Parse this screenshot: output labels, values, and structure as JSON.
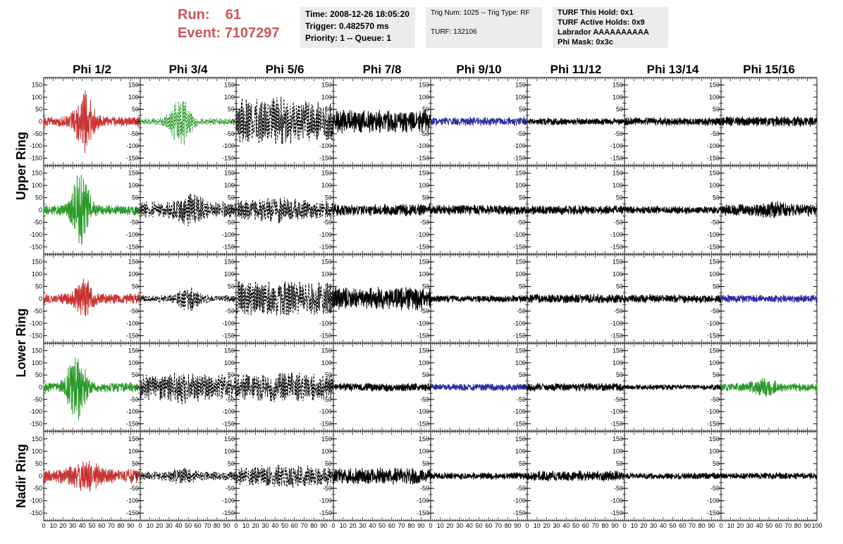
{
  "header": {
    "run_label": "Run:",
    "run_value": "61",
    "event_label": "Event:",
    "event_value": "7107297",
    "info_time": "Time: 2008-12-26 18:05:20",
    "info_trigger": "Trigger: 0.482570 ms",
    "info_priority": "Priority: 1 -- Queue: 1",
    "info_trig_num": "Trig Num: 1025 -- Trig Type: RF",
    "info_turf": "TURF: 132106",
    "info_this_hold": "TURF This Hold: 0x1",
    "info_active_holds": "TURF Active Holds: 0x9",
    "info_labrador": "Labrador AAAAAAAAAA",
    "info_phi_mask": "Phi Mask: 0x3c"
  },
  "colors": {
    "red": "#c83232",
    "green": "#2a9a2a",
    "blue": "#2a2aa0",
    "black": "#000000"
  },
  "chart_data": {
    "type": "line",
    "columns": [
      "Phi 1/2",
      "Phi 3/4",
      "Phi 5/6",
      "Phi 7/8",
      "Phi 9/10",
      "Phi 11/12",
      "Phi 13/14",
      "Phi 15/16"
    ],
    "rows": [
      "Upper Ring",
      "Upper Ring",
      "Lower Ring",
      "Lower Ring",
      "Nadir Ring"
    ],
    "ring_labels": [
      "Upper Ring",
      "Lower Ring",
      "Nadir Ring"
    ],
    "xlim": [
      0,
      100
    ],
    "ylim": [
      -175,
      175
    ],
    "x_ticks": [
      0,
      10,
      20,
      30,
      40,
      50,
      60,
      70,
      80,
      90,
      100
    ],
    "x_tick_labels": [
      "0",
      "10",
      "20",
      "30",
      "40",
      "50",
      "60",
      "70",
      "80",
      "90",
      "100"
    ],
    "y_ticks": [
      -150,
      -100,
      -50,
      0,
      50,
      100,
      150
    ],
    "y_tick_labels": [
      "-150",
      "-100",
      "-50",
      "0",
      "50",
      "100",
      "150"
    ],
    "panels": [
      [
        {
          "color": "red",
          "style": "solid",
          "amp": 22,
          "peak": 110,
          "peak_x": 42,
          "width": 10
        },
        {
          "color": "green",
          "style": "dashed",
          "amp": 15,
          "peak": 100,
          "peak_x": 42,
          "width": 11
        },
        {
          "color": "black",
          "style": "dashed",
          "amp": 90,
          "peak": 20,
          "peak_x": 30,
          "width": 25
        },
        {
          "color": "black",
          "style": "solid",
          "amp": 50,
          "peak": 0,
          "peak_x": 50,
          "width": 30
        },
        {
          "color": "blue",
          "style": "solid",
          "amp": 18,
          "peak": 0,
          "peak_x": 50,
          "width": 30
        },
        {
          "color": "black",
          "style": "solid",
          "amp": 15,
          "peak": 0,
          "peak_x": 50,
          "width": 30
        },
        {
          "color": "black",
          "style": "solid",
          "amp": 18,
          "peak": 0,
          "peak_x": 50,
          "width": 30
        },
        {
          "color": "black",
          "style": "solid",
          "amp": 22,
          "peak": 0,
          "peak_x": 50,
          "width": 30
        }
      ],
      [
        {
          "color": "green",
          "style": "solid",
          "amp": 22,
          "peak": 160,
          "peak_x": 38,
          "width": 9
        },
        {
          "color": "black",
          "style": "dashed",
          "amp": 35,
          "peak": 45,
          "peak_x": 52,
          "width": 12
        },
        {
          "color": "black",
          "style": "dashed",
          "amp": 40,
          "peak": 15,
          "peak_x": 40,
          "width": 25
        },
        {
          "color": "black",
          "style": "solid",
          "amp": 25,
          "peak": 0,
          "peak_x": 50,
          "width": 30
        },
        {
          "color": "black",
          "style": "solid",
          "amp": 22,
          "peak": 0,
          "peak_x": 50,
          "width": 30
        },
        {
          "color": "black",
          "style": "solid",
          "amp": 20,
          "peak": 0,
          "peak_x": 50,
          "width": 30
        },
        {
          "color": "black",
          "style": "solid",
          "amp": 16,
          "peak": 0,
          "peak_x": 50,
          "width": 30
        },
        {
          "color": "black",
          "style": "solid",
          "amp": 25,
          "peak": 15,
          "peak_x": 55,
          "width": 12
        }
      ],
      [
        {
          "color": "red",
          "style": "solid",
          "amp": 22,
          "peak": 65,
          "peak_x": 42,
          "width": 10
        },
        {
          "color": "black",
          "style": "dashed",
          "amp": 15,
          "peak": 40,
          "peak_x": 50,
          "width": 12
        },
        {
          "color": "black",
          "style": "dashed",
          "amp": 75,
          "peak": 0,
          "peak_x": 50,
          "width": 30
        },
        {
          "color": "black",
          "style": "solid",
          "amp": 50,
          "peak": 0,
          "peak_x": 50,
          "width": 30
        },
        {
          "color": "black",
          "style": "solid",
          "amp": 15,
          "peak": 0,
          "peak_x": 50,
          "width": 30
        },
        {
          "color": "black",
          "style": "solid",
          "amp": 20,
          "peak": 0,
          "peak_x": 50,
          "width": 30
        },
        {
          "color": "black",
          "style": "solid",
          "amp": 18,
          "peak": 0,
          "peak_x": 50,
          "width": 30
        },
        {
          "color": "blue",
          "style": "solid",
          "amp": 17,
          "peak": 0,
          "peak_x": 50,
          "width": 30
        }
      ],
      [
        {
          "color": "green",
          "style": "solid",
          "amp": 22,
          "peak": 130,
          "peak_x": 34,
          "width": 10
        },
        {
          "color": "black",
          "style": "dashed",
          "amp": 55,
          "peak": 15,
          "peak_x": 45,
          "width": 20
        },
        {
          "color": "black",
          "style": "dashed",
          "amp": 55,
          "peak": 10,
          "peak_x": 40,
          "width": 25
        },
        {
          "color": "black",
          "style": "solid",
          "amp": 18,
          "peak": 0,
          "peak_x": 50,
          "width": 30
        },
        {
          "color": "blue",
          "style": "solid",
          "amp": 16,
          "peak": 0,
          "peak_x": 50,
          "width": 30
        },
        {
          "color": "black",
          "style": "solid",
          "amp": 18,
          "peak": 0,
          "peak_x": 50,
          "width": 30
        },
        {
          "color": "black",
          "style": "solid",
          "amp": 12,
          "peak": 0,
          "peak_x": 50,
          "width": 30
        },
        {
          "color": "green",
          "style": "solid",
          "amp": 18,
          "peak": 25,
          "peak_x": 45,
          "width": 14
        }
      ],
      [
        {
          "color": "red",
          "style": "solid",
          "amp": 30,
          "peak": 45,
          "peak_x": 45,
          "width": 15
        },
        {
          "color": "black",
          "style": "dashed",
          "amp": 20,
          "peak": 20,
          "peak_x": 45,
          "width": 14
        },
        {
          "color": "black",
          "style": "dashed",
          "amp": 40,
          "peak": 10,
          "peak_x": 50,
          "width": 25
        },
        {
          "color": "black",
          "style": "solid",
          "amp": 35,
          "peak": 0,
          "peak_x": 50,
          "width": 30
        },
        {
          "color": "black",
          "style": "solid",
          "amp": 15,
          "peak": 0,
          "peak_x": 50,
          "width": 30
        },
        {
          "color": "black",
          "style": "solid",
          "amp": 22,
          "peak": 0,
          "peak_x": 50,
          "width": 30
        },
        {
          "color": "black",
          "style": "solid",
          "amp": 14,
          "peak": 0,
          "peak_x": 50,
          "width": 30
        },
        {
          "color": "black",
          "style": "solid",
          "amp": 14,
          "peak": 0,
          "peak_x": 50,
          "width": 30
        }
      ]
    ]
  }
}
